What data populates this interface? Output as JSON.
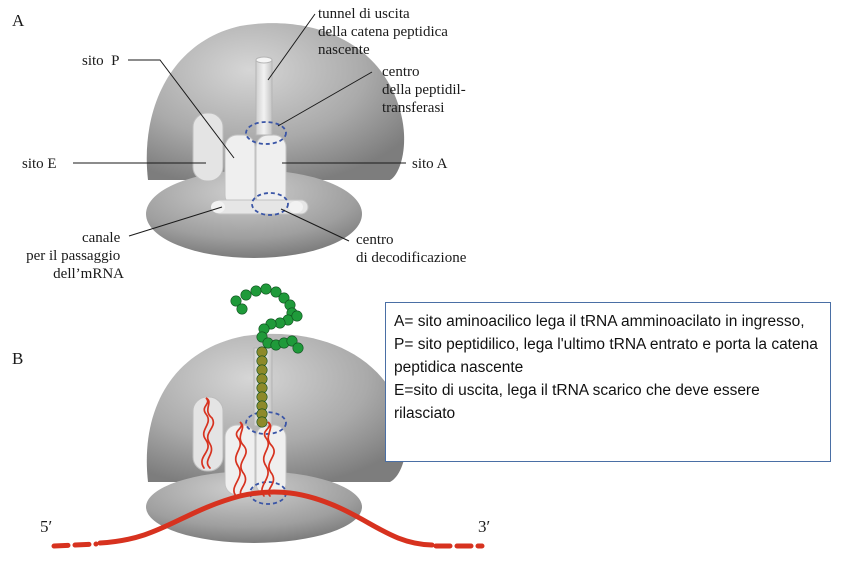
{
  "panel_a": {
    "letter": "A",
    "labels": {
      "tunnel": [
        "tunnel di uscita",
        "della catena peptidica",
        "nascente"
      ],
      "sito_p": "sito  P",
      "ptc": [
        "centro",
        "della peptidil-",
        "transferasi"
      ],
      "sito_e": "sito E",
      "sito_a": "sito A",
      "canale": [
        "canale",
        "per il passaggio",
        "dell’mRNA"
      ],
      "decod": [
        "centro",
        "di decodificazione"
      ]
    }
  },
  "panel_b": {
    "letter": "B",
    "five_prime": "5′",
    "three_prime": "3′"
  },
  "legend": {
    "line_a": "A= sito aminoacilico lega il tRNA amminoacilato in ingresso,",
    "line_p": "P= sito peptidilico, lega l'ultimo tRNA entrato e porta la catena peptidica nascente",
    "line_e": "E=sito di uscita, lega il tRNA scarico che deve essere rilasciato"
  },
  "colors": {
    "ribosome": "#a8a8a8",
    "dashed_circle": "#3a55a6",
    "mrna": "#d7321f",
    "trna": "#d7321f",
    "peptide_green": "#1f9a3a",
    "peptide_olive": "#8d8a2a",
    "legend_border": "#4a6fa5"
  }
}
